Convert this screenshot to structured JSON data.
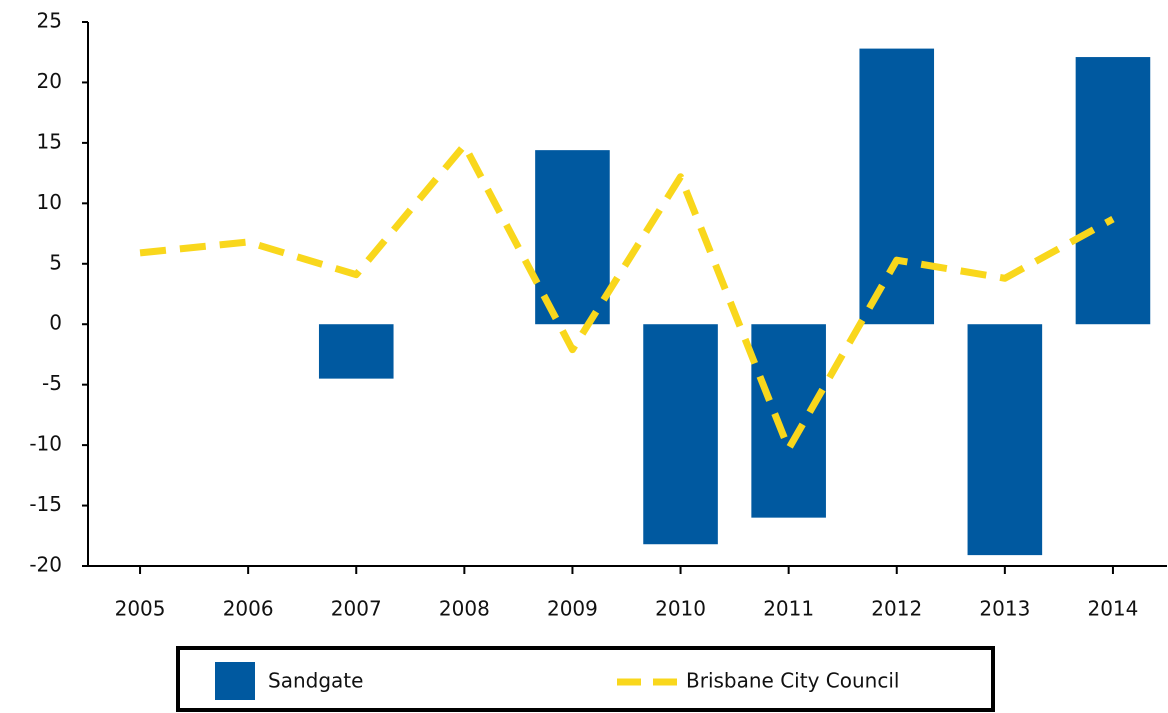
{
  "chart_data": {
    "type": "bar",
    "categories": [
      "2005",
      "2006",
      "2007",
      "2008",
      "2009",
      "2010",
      "2011",
      "2012",
      "2013",
      "2014"
    ],
    "series": [
      {
        "name": "Sandgate",
        "type": "bar",
        "color": "#0059a0",
        "values": [
          null,
          null,
          -4.5,
          null,
          14.4,
          -18.2,
          -16.0,
          22.8,
          -19.1,
          22.1
        ]
      },
      {
        "name": "Brisbane City Council",
        "type": "line",
        "color": "#f9d71c",
        "values": [
          5.9,
          6.8,
          4.1,
          14.8,
          -2.1,
          12.2,
          -10.3,
          5.3,
          3.8,
          8.7
        ]
      }
    ],
    "ylim": [
      -20,
      25
    ],
    "yticks": [
      -20,
      -15,
      -10,
      -5,
      0,
      5,
      10,
      15,
      20,
      25
    ],
    "legend": "bottom"
  }
}
